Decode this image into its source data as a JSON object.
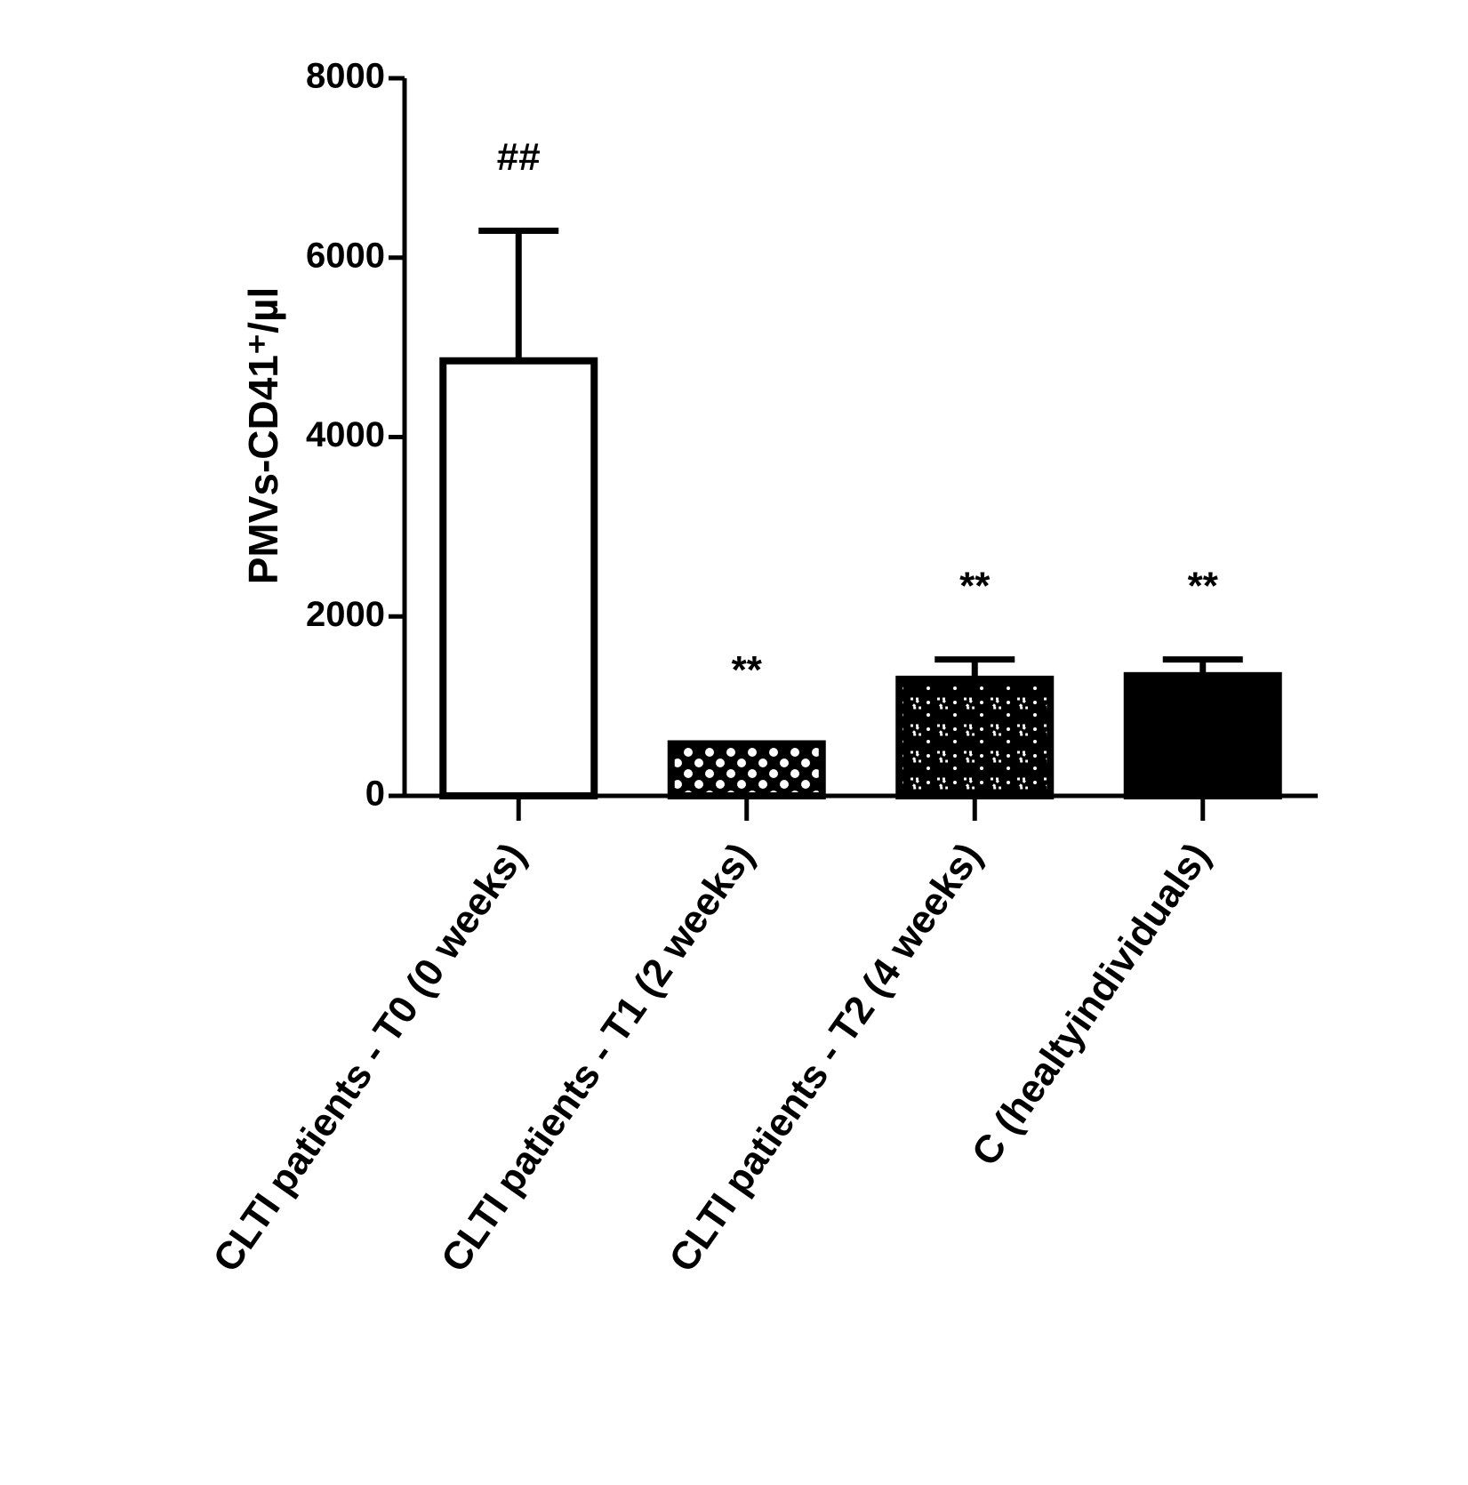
{
  "chart_data": {
    "type": "bar",
    "y_label": "PMVs-CD41⁺/µl",
    "categories": [
      "CLTI patients - T0 (0 weeks)",
      "CLTI patients - T1 (2 weeks)",
      "CLTI patients - T2 (4 weeks)",
      "C (healtyindividuals)"
    ],
    "values": [
      4850,
      580,
      1300,
      1340
    ],
    "errors": [
      1450,
      null,
      220,
      180
    ],
    "annotations": [
      "##",
      "**",
      "**",
      "**"
    ],
    "patterns": [
      "open",
      "checker",
      "zigzag",
      "solid"
    ],
    "color": "#000000",
    "ylim": [
      0,
      8000
    ],
    "yticks": [
      0,
      2000,
      4000,
      6000,
      8000
    ],
    "grid": false
  }
}
